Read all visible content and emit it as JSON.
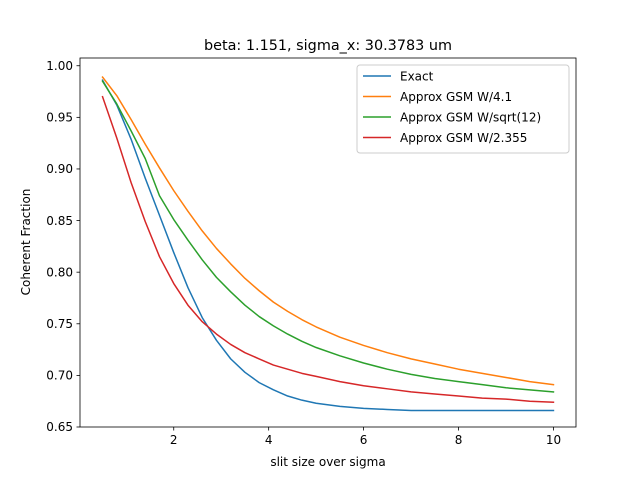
{
  "chart_data": {
    "type": "line",
    "title": "beta: 1.151, sigma_x: 30.3783 um",
    "xlabel": "slit size over sigma",
    "ylabel": "Coherent Fraction",
    "xlim": [
      0.025,
      10.475
    ],
    "ylim": [
      0.65,
      1.0075
    ],
    "xticks": [
      2,
      4,
      6,
      8,
      10
    ],
    "xtick_labels": [
      "2",
      "4",
      "6",
      "8",
      "10"
    ],
    "yticks": [
      0.65,
      0.7,
      0.75,
      0.8,
      0.85,
      0.9,
      0.95,
      1.0
    ],
    "ytick_labels": [
      "0.65",
      "0.70",
      "0.75",
      "0.80",
      "0.85",
      "0.90",
      "0.95",
      "1.00"
    ],
    "grid": false,
    "legend_position": "top-right",
    "x": [
      0.5,
      0.8,
      1.1,
      1.4,
      1.7,
      2.0,
      2.3,
      2.6,
      2.9,
      3.2,
      3.5,
      3.8,
      4.1,
      4.4,
      4.7,
      5.0,
      5.5,
      6.0,
      6.5,
      7.0,
      7.5,
      8.0,
      8.5,
      9.0,
      9.5,
      10.0
    ],
    "series": [
      {
        "name": "Exact",
        "color": "#1f77b4",
        "values": [
          0.986,
          0.962,
          0.929,
          0.891,
          0.855,
          0.819,
          0.785,
          0.756,
          0.734,
          0.716,
          0.703,
          0.693,
          0.686,
          0.68,
          0.676,
          0.673,
          0.67,
          0.668,
          0.667,
          0.666,
          0.666,
          0.666,
          0.666,
          0.666,
          0.666,
          0.666
        ]
      },
      {
        "name": "Approx GSM W/4.1",
        "color": "#ff7f0e",
        "values": [
          0.989,
          0.971,
          0.948,
          0.924,
          0.901,
          0.879,
          0.859,
          0.84,
          0.823,
          0.808,
          0.794,
          0.782,
          0.771,
          0.762,
          0.754,
          0.747,
          0.737,
          0.729,
          0.722,
          0.716,
          0.711,
          0.706,
          0.702,
          0.698,
          0.694,
          0.691
        ]
      },
      {
        "name": "Approx GSM W/sqrt(12)",
        "color": "#2ca02c",
        "values": [
          0.985,
          0.963,
          0.937,
          0.91,
          0.874,
          0.851,
          0.831,
          0.812,
          0.795,
          0.781,
          0.768,
          0.757,
          0.748,
          0.74,
          0.733,
          0.727,
          0.719,
          0.712,
          0.706,
          0.701,
          0.697,
          0.694,
          0.691,
          0.688,
          0.686,
          0.684
        ]
      },
      {
        "name": "Approx GSM W/2.355",
        "color": "#d62728",
        "values": [
          0.97,
          0.93,
          0.887,
          0.849,
          0.815,
          0.789,
          0.768,
          0.752,
          0.74,
          0.73,
          0.722,
          0.716,
          0.71,
          0.706,
          0.702,
          0.699,
          0.694,
          0.69,
          0.687,
          0.684,
          0.682,
          0.68,
          0.678,
          0.677,
          0.675,
          0.674
        ]
      }
    ]
  }
}
